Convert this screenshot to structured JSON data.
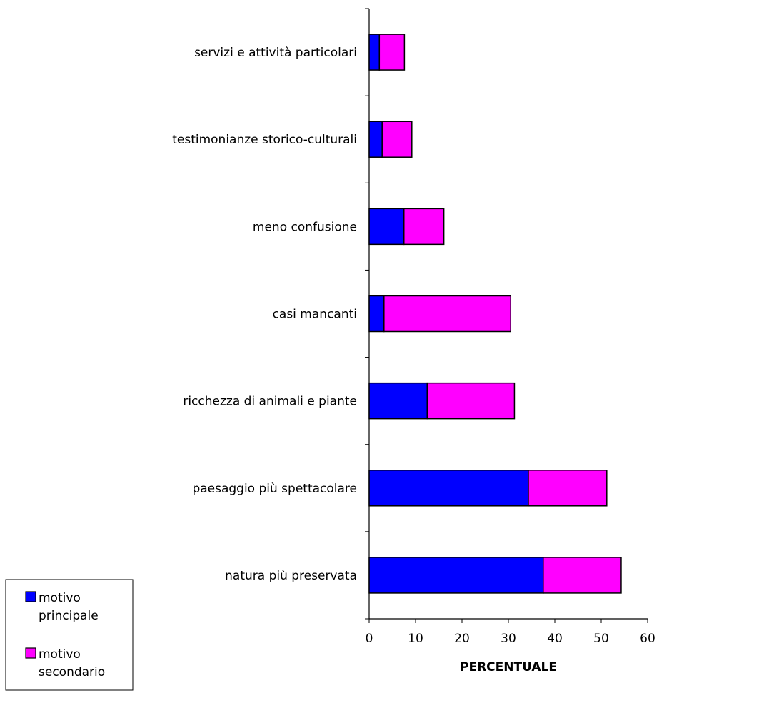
{
  "chart_data": {
    "type": "bar",
    "orientation": "horizontal",
    "stacked": true,
    "title": "",
    "xlabel": "PERCENTUALE",
    "ylabel": "",
    "xlim": [
      0,
      60
    ],
    "x_ticks": [
      "0",
      "10",
      "20",
      "30",
      "40",
      "50",
      "60"
    ],
    "grid": false,
    "legend_position": "bottom-left",
    "categories": [
      "servizi e attività particolari",
      "testimonianze storico-culturali",
      "meno confusione",
      "casi mancanti",
      "ricchezza di animali e piante",
      "paesaggio più spettacolare",
      "natura più preservata"
    ],
    "series": [
      {
        "name": "motivo principale",
        "color": "#0000ff",
        "values": [
          2.2,
          2.8,
          7.5,
          3.2,
          12.5,
          34.3,
          37.5
        ]
      },
      {
        "name": "motivo secondario",
        "color": "#ff00ff",
        "values": [
          5.4,
          6.4,
          8.6,
          27.3,
          18.8,
          16.9,
          16.8
        ]
      }
    ]
  },
  "legend": {
    "items": [
      {
        "line1": "motivo",
        "line2": "principale",
        "color": "#0000ff"
      },
      {
        "line1": "motivo",
        "line2": "secondario",
        "color": "#ff00ff"
      }
    ]
  }
}
